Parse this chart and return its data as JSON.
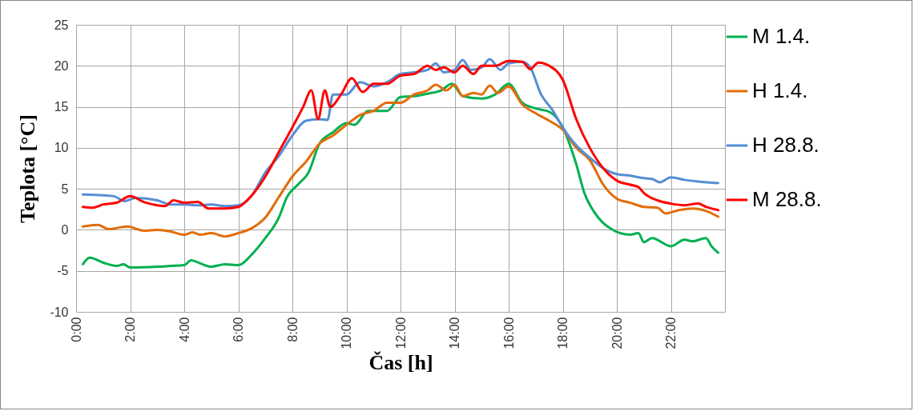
{
  "chart_data": {
    "type": "line",
    "xlabel": "Čas [h]",
    "ylabel": "Teplota  [°C]",
    "xlim": [
      0,
      24
    ],
    "ylim": [
      -10,
      25
    ],
    "xticks": [
      {
        "value": 0,
        "label": "0:00"
      },
      {
        "value": 2,
        "label": "2:00"
      },
      {
        "value": 4,
        "label": "4:00"
      },
      {
        "value": 6,
        "label": "6:00"
      },
      {
        "value": 8,
        "label": "8:00"
      },
      {
        "value": 10,
        "label": "10:00"
      },
      {
        "value": 12,
        "label": "12:00"
      },
      {
        "value": 14,
        "label": "14:00"
      },
      {
        "value": 16,
        "label": "16:00"
      },
      {
        "value": 18,
        "label": "18:00"
      },
      {
        "value": 20,
        "label": "20:00"
      },
      {
        "value": 22,
        "label": "22:00"
      }
    ],
    "yticks": [
      -10,
      -5,
      0,
      5,
      10,
      15,
      20,
      25
    ],
    "grid": true,
    "legend": "right",
    "marker": "none",
    "line_style": "solid",
    "series": [
      {
        "name": "M 1.4.",
        "color": "#00b050",
        "x": [
          0.25,
          0.5,
          1,
          1.5,
          1.75,
          2,
          3,
          3.5,
          4,
          4.25,
          4.6,
          5,
          5.5,
          6,
          6.5,
          7,
          7.5,
          7.8,
          8.2,
          8.6,
          9,
          9.5,
          10,
          10.3,
          10.8,
          11.5,
          12,
          12.5,
          13,
          13.5,
          13.9,
          14.3,
          15,
          15.5,
          16,
          16.5,
          17,
          17.5,
          18,
          18.5,
          18.8,
          19.2,
          19.7,
          20.5,
          20.8,
          21,
          21.3,
          22,
          22.5,
          22.8,
          23.3,
          23.5,
          23.75
        ],
        "values": [
          -4.2,
          -3.4,
          -4.0,
          -4.4,
          -4.2,
          -4.6,
          -4.5,
          -4.4,
          -4.3,
          -3.7,
          -4.1,
          -4.5,
          -4.2,
          -4.3,
          -3.0,
          -1.0,
          1.5,
          4,
          5.5,
          7,
          10.5,
          11.9,
          13,
          12.8,
          14.5,
          14.5,
          16.2,
          16.3,
          16.6,
          17,
          17.8,
          16.3,
          16.0,
          16.5,
          17.8,
          15.5,
          14.8,
          14.4,
          12.5,
          8,
          4.5,
          2,
          0.3,
          -0.6,
          -0.4,
          -1.5,
          -1.0,
          -2,
          -1.2,
          -1.4,
          -1.0,
          -2.0,
          -2.8
        ]
      },
      {
        "name": "H 1.4.",
        "color": "#e36c0a",
        "x": [
          0.25,
          0.8,
          1.2,
          1.9,
          2.5,
          3,
          3.5,
          4,
          4.3,
          4.6,
          5,
          5.5,
          6,
          6.5,
          7,
          7.5,
          8,
          8.5,
          9,
          9.5,
          10,
          10.5,
          11,
          11.5,
          12,
          12.5,
          13,
          13.3,
          13.7,
          14,
          14.3,
          14.7,
          15,
          15.3,
          15.6,
          16,
          16.5,
          17,
          17.5,
          18,
          18.5,
          19,
          19.5,
          20,
          20.5,
          21,
          21.5,
          21.8,
          22.3,
          22.8,
          23.3,
          23.75
        ],
        "values": [
          0.4,
          0.6,
          0.1,
          0.4,
          -0.1,
          0.0,
          -0.2,
          -0.6,
          -0.3,
          -0.6,
          -0.4,
          -0.8,
          -0.4,
          0.2,
          1.5,
          4,
          6.5,
          8.3,
          10.5,
          11.5,
          12.8,
          14,
          14.5,
          15.5,
          15.5,
          16.5,
          17.0,
          17.7,
          17.0,
          17.7,
          16.3,
          16.7,
          16.5,
          17.6,
          16.7,
          17.5,
          15.3,
          14.2,
          13.3,
          12.2,
          10,
          8.5,
          5.5,
          3.8,
          3.3,
          2.8,
          2.7,
          2.0,
          2.4,
          2.6,
          2.3,
          1.6
        ]
      },
      {
        "name": "H 28.8.",
        "color": "#558ed5",
        "x": [
          0.25,
          1,
          1.4,
          1.8,
          2.2,
          3,
          3.5,
          4,
          4.5,
          5,
          5.5,
          6,
          6.5,
          7,
          7.5,
          8,
          8.5,
          9,
          9.3,
          9.5,
          10,
          10.5,
          11,
          11.5,
          12,
          12.5,
          13,
          13.3,
          13.6,
          14,
          14.3,
          14.6,
          15,
          15.3,
          15.7,
          16,
          16.5,
          16.8,
          17.2,
          17.6,
          18,
          18.5,
          19,
          19.5,
          20,
          20.5,
          21,
          21.3,
          21.6,
          22,
          22.5,
          23,
          23.75
        ],
        "values": [
          4.3,
          4.2,
          4.1,
          3.5,
          3.9,
          3.6,
          3.1,
          3.1,
          3.0,
          3.1,
          2.9,
          3.0,
          4.2,
          7,
          9,
          11.5,
          13.3,
          13.5,
          13.4,
          16.5,
          16.5,
          18,
          17.5,
          18,
          19,
          19.2,
          19.5,
          20.3,
          19.2,
          19.5,
          20.7,
          19.5,
          19.8,
          20.8,
          19.5,
          20.3,
          20.5,
          19.8,
          16.5,
          14.7,
          12.5,
          10.3,
          8.8,
          7.5,
          6.8,
          6.6,
          6.3,
          6.2,
          5.8,
          6.4,
          6.1,
          5.9,
          5.7
        ]
      },
      {
        "name": "M 28.8.",
        "color": "#ff0000",
        "x": [
          0.25,
          0.6,
          1,
          1.5,
          2,
          2.5,
          3,
          3.3,
          3.6,
          4,
          4.5,
          4.9,
          5.5,
          6,
          6.5,
          7,
          7.5,
          8,
          8.4,
          8.7,
          8.95,
          9.2,
          9.4,
          9.8,
          10.2,
          10.6,
          11,
          11.5,
          12,
          12.5,
          13,
          13.3,
          13.6,
          14,
          14.3,
          14.7,
          15,
          15.5,
          16,
          16.5,
          16.8,
          17.1,
          17.5,
          18,
          18.5,
          19,
          19.5,
          20,
          20.5,
          20.8,
          21,
          21.5,
          22,
          22.5,
          23,
          23.3,
          23.75
        ],
        "values": [
          2.8,
          2.7,
          3.1,
          3.3,
          4.1,
          3.4,
          3.0,
          2.9,
          3.6,
          3.3,
          3.4,
          2.6,
          2.6,
          2.8,
          4.2,
          6.5,
          9.5,
          12.5,
          15,
          17,
          13.5,
          17,
          15,
          16.5,
          18.5,
          16.8,
          17.8,
          17.8,
          18.8,
          19,
          20,
          19.5,
          19.8,
          19.2,
          20.0,
          19.0,
          20.0,
          20.0,
          20.6,
          20.5,
          19.6,
          20.4,
          20,
          18.3,
          13.5,
          10,
          7.5,
          6.0,
          5.5,
          5.2,
          4.5,
          3.6,
          3.2,
          3.0,
          3.2,
          2.8,
          2.4
        ]
      }
    ]
  }
}
